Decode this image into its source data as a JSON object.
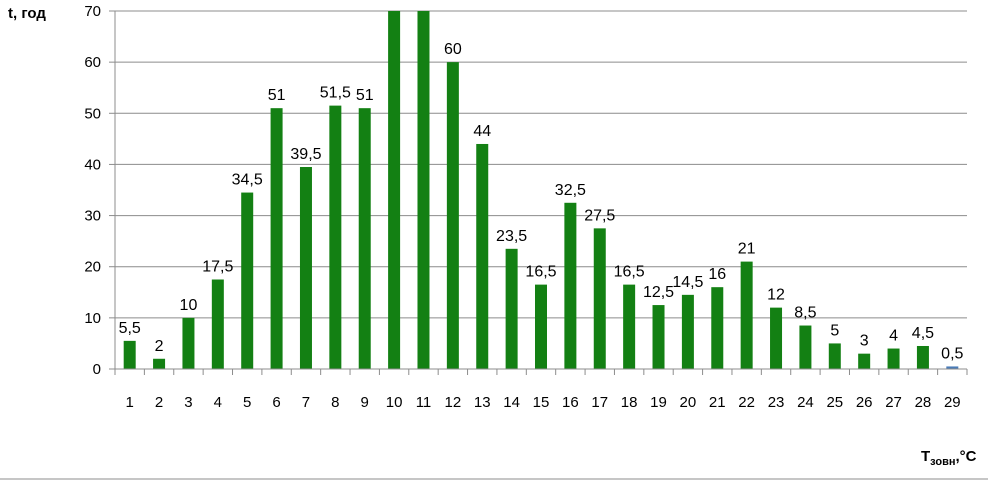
{
  "chart_data": {
    "type": "bar",
    "ylabel": "t, год",
    "xlabel": {
      "main": "T",
      "subscript": "зовн",
      "unit": ",°С"
    },
    "ylim": [
      0,
      70
    ],
    "yticks": [
      0,
      10,
      20,
      30,
      40,
      50,
      60,
      70
    ],
    "grid": true,
    "legend": "none",
    "categories": [
      "1",
      "2",
      "3",
      "4",
      "5",
      "6",
      "7",
      "8",
      "9",
      "10",
      "11",
      "12",
      "13",
      "14",
      "15",
      "16",
      "17",
      "18",
      "19",
      "20",
      "21",
      "22",
      "23",
      "24",
      "25",
      "26",
      "27",
      "28",
      "29"
    ],
    "values": [
      5.5,
      2,
      10,
      17.5,
      34.5,
      51,
      39.5,
      51.5,
      51,
      70,
      70,
      60,
      44,
      23.5,
      16.5,
      32.5,
      27.5,
      16.5,
      12.5,
      14.5,
      16,
      21,
      12,
      8.5,
      5,
      3,
      4,
      4.5,
      0.5
    ],
    "data_labels": [
      "5,5",
      "2",
      "10",
      "17,5",
      "34,5",
      "51",
      "39,5",
      "51,5",
      "51",
      "",
      "",
      "60",
      "44",
      "23,5",
      "16,5",
      "32,5",
      "27,5",
      "16,5",
      "12,5",
      "14,5",
      "16",
      "21",
      "12",
      "8,5",
      "5",
      "3",
      "4",
      "4,5",
      "0,5"
    ],
    "colors": {
      "bar": "#138013",
      "last_bar": "#4a7bb7",
      "grid": "#8c8c8c",
      "axis": "#8c8c8c"
    }
  }
}
